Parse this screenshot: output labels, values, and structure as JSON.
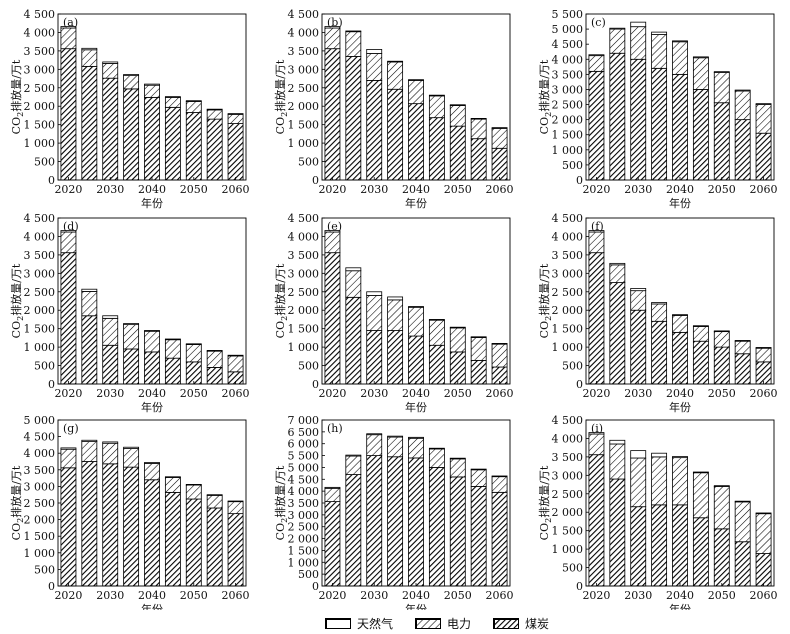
{
  "legend": [
    {
      "key": "gas",
      "label": "天然气"
    },
    {
      "key": "power",
      "label": "电力"
    },
    {
      "key": "coal",
      "label": "煤炭"
    }
  ],
  "ylabel_main": "CO",
  "ylabel_sub": "2",
  "ylabel_rest": "排放量/万t",
  "xlabel": "年份",
  "chart_data": [
    {
      "type": "bar",
      "stacked": true,
      "panel": "(a)",
      "categories": [
        "2020",
        "2025",
        "2030",
        "2035",
        "2040",
        "2045",
        "2050",
        "2055",
        "2060"
      ],
      "x_ticks": [
        "2020",
        "2030",
        "2040",
        "2050",
        "2060"
      ],
      "ylim": [
        0,
        4500
      ],
      "yticks": [
        0,
        500,
        1000,
        1500,
        2000,
        2500,
        3000,
        3500,
        4000,
        4500
      ],
      "series": [
        {
          "name": "煤炭",
          "values": [
            3560,
            3080,
            2760,
            2470,
            2240,
            1970,
            1830,
            1650,
            1530
          ]
        },
        {
          "name": "电力",
          "values": [
            560,
            450,
            400,
            360,
            330,
            270,
            300,
            250,
            250
          ]
        },
        {
          "name": "天然气",
          "values": [
            40,
            40,
            40,
            30,
            30,
            20,
            20,
            20,
            20
          ]
        }
      ]
    },
    {
      "type": "bar",
      "stacked": true,
      "panel": "(b)",
      "categories": [
        "2020",
        "2025",
        "2030",
        "2035",
        "2040",
        "2045",
        "2050",
        "2055",
        "2060"
      ],
      "x_ticks": [
        "2020",
        "2030",
        "2040",
        "2050",
        "2060"
      ],
      "ylim": [
        0,
        4500
      ],
      "yticks": [
        0,
        500,
        1000,
        1500,
        2000,
        2500,
        3000,
        3500,
        4000,
        4500
      ],
      "series": [
        {
          "name": "煤炭",
          "values": [
            3560,
            3350,
            2700,
            2460,
            2070,
            1690,
            1460,
            1120,
            860
          ]
        },
        {
          "name": "电力",
          "values": [
            560,
            670,
            730,
            740,
            630,
            590,
            560,
            530,
            540
          ]
        },
        {
          "name": "天然气",
          "values": [
            40,
            20,
            110,
            20,
            20,
            20,
            20,
            20,
            20
          ]
        }
      ]
    },
    {
      "type": "bar",
      "stacked": true,
      "panel": "(c)",
      "categories": [
        "2020",
        "2025",
        "2030",
        "2035",
        "2040",
        "2045",
        "2050",
        "2055",
        "2060"
      ],
      "x_ticks": [
        "2020",
        "2030",
        "2040",
        "2050",
        "2060"
      ],
      "ylim": [
        0,
        5500
      ],
      "yticks": [
        0,
        500,
        1000,
        1500,
        2000,
        2500,
        3000,
        3500,
        4000,
        4500,
        5000,
        5500
      ],
      "series": [
        {
          "name": "煤炭",
          "values": [
            3600,
            4200,
            4000,
            3700,
            3500,
            3000,
            2560,
            2000,
            1550
          ]
        },
        {
          "name": "电力",
          "values": [
            520,
            800,
            1080,
            1120,
            1080,
            1050,
            1000,
            950,
            950
          ]
        },
        {
          "name": "天然气",
          "values": [
            30,
            30,
            150,
            80,
            30,
            30,
            30,
            30,
            30
          ]
        }
      ]
    },
    {
      "type": "bar",
      "stacked": true,
      "panel": "(d)",
      "categories": [
        "2020",
        "2025",
        "2030",
        "2035",
        "2040",
        "2045",
        "2050",
        "2055",
        "2060"
      ],
      "x_ticks": [
        "2020",
        "2030",
        "2040",
        "2050",
        "2060"
      ],
      "ylim": [
        0,
        4500
      ],
      "yticks": [
        0,
        500,
        1000,
        1500,
        2000,
        2500,
        3000,
        3500,
        4000,
        4500
      ],
      "series": [
        {
          "name": "煤炭",
          "values": [
            3560,
            1850,
            1050,
            950,
            870,
            700,
            600,
            450,
            330
          ]
        },
        {
          "name": "电力",
          "values": [
            560,
            660,
            730,
            660,
            560,
            500,
            470,
            440,
            430
          ]
        },
        {
          "name": "天然气",
          "values": [
            40,
            60,
            70,
            30,
            20,
            20,
            20,
            20,
            20
          ]
        }
      ]
    },
    {
      "type": "bar",
      "stacked": true,
      "panel": "(e)",
      "categories": [
        "2020",
        "2025",
        "2030",
        "2035",
        "2040",
        "2045",
        "2050",
        "2055",
        "2060"
      ],
      "x_ticks": [
        "2020",
        "2030",
        "2040",
        "2050",
        "2060"
      ],
      "ylim": [
        0,
        4500
      ],
      "yticks": [
        0,
        500,
        1000,
        1500,
        2000,
        2500,
        3000,
        3500,
        4000,
        4500
      ],
      "series": [
        {
          "name": "煤炭",
          "values": [
            3560,
            2350,
            1450,
            1450,
            1300,
            1050,
            870,
            640,
            460
          ]
        },
        {
          "name": "电力",
          "values": [
            560,
            720,
            950,
            830,
            780,
            680,
            650,
            620,
            620
          ]
        },
        {
          "name": "天然气",
          "values": [
            40,
            80,
            100,
            80,
            20,
            20,
            20,
            20,
            20
          ]
        }
      ]
    },
    {
      "type": "bar",
      "stacked": true,
      "panel": "(f)",
      "categories": [
        "2020",
        "2025",
        "2030",
        "2035",
        "2040",
        "2045",
        "2050",
        "2055",
        "2060"
      ],
      "x_ticks": [
        "2020",
        "2030",
        "2040",
        "2050",
        "2060"
      ],
      "ylim": [
        0,
        4500
      ],
      "yticks": [
        0,
        500,
        1000,
        1500,
        2000,
        2500,
        3000,
        3500,
        4000,
        4500
      ],
      "series": [
        {
          "name": "煤炭",
          "values": [
            3560,
            2750,
            2000,
            1700,
            1400,
            1160,
            1000,
            820,
            600
          ]
        },
        {
          "name": "电力",
          "values": [
            560,
            480,
            530,
            470,
            460,
            400,
            420,
            340,
            370
          ]
        },
        {
          "name": "天然气",
          "values": [
            40,
            40,
            60,
            40,
            20,
            20,
            20,
            20,
            20
          ]
        }
      ]
    },
    {
      "type": "bar",
      "stacked": true,
      "panel": "(g)",
      "categories": [
        "2020",
        "2025",
        "2030",
        "2035",
        "2040",
        "2045",
        "2050",
        "2055",
        "2060"
      ],
      "x_ticks": [
        "2020",
        "2030",
        "2040",
        "2050",
        "2060"
      ],
      "ylim": [
        0,
        5000
      ],
      "yticks": [
        0,
        500,
        1000,
        1500,
        2000,
        2500,
        3000,
        3500,
        4000,
        4500,
        5000
      ],
      "series": [
        {
          "name": "煤炭",
          "values": [
            3560,
            3750,
            3680,
            3580,
            3200,
            2820,
            2620,
            2350,
            2180
          ]
        },
        {
          "name": "电力",
          "values": [
            560,
            600,
            620,
            560,
            490,
            450,
            420,
            380,
            360
          ]
        },
        {
          "name": "天然气",
          "values": [
            40,
            40,
            40,
            40,
            30,
            20,
            20,
            20,
            20
          ]
        }
      ]
    },
    {
      "type": "bar",
      "stacked": true,
      "panel": "(h)",
      "categories": [
        "2020",
        "2025",
        "2030",
        "2035",
        "2040",
        "2045",
        "2050",
        "2055",
        "2060"
      ],
      "x_ticks": [
        "2020",
        "2030",
        "2040",
        "2050",
        "2060"
      ],
      "ylim": [
        0,
        7000
      ],
      "yticks": [
        0,
        500,
        1000,
        1500,
        2000,
        2500,
        3000,
        3500,
        4000,
        4500,
        5000,
        5500,
        6000,
        6500,
        7000
      ],
      "series": [
        {
          "name": "煤炭",
          "values": [
            3560,
            4700,
            5500,
            5450,
            5400,
            5000,
            4600,
            4200,
            3950
          ]
        },
        {
          "name": "电力",
          "values": [
            560,
            780,
            880,
            830,
            830,
            780,
            760,
            700,
            660
          ]
        },
        {
          "name": "天然气",
          "values": [
            40,
            40,
            40,
            40,
            40,
            30,
            30,
            30,
            30
          ]
        }
      ]
    },
    {
      "type": "bar",
      "stacked": true,
      "panel": "(i)",
      "categories": [
        "2020",
        "2025",
        "2030",
        "2035",
        "2040",
        "2045",
        "2050",
        "2055",
        "2060"
      ],
      "x_ticks": [
        "2020",
        "2030",
        "2040",
        "2050",
        "2060"
      ],
      "ylim": [
        0,
        4500
      ],
      "yticks": [
        0,
        500,
        1000,
        1500,
        2000,
        2500,
        3000,
        3500,
        4000,
        4500
      ],
      "series": [
        {
          "name": "煤炭",
          "values": [
            3560,
            2900,
            2150,
            2200,
            2200,
            1850,
            1550,
            1200,
            880
          ]
        },
        {
          "name": "电力",
          "values": [
            560,
            950,
            1320,
            1300,
            1280,
            1220,
            1150,
            1080,
            1080
          ]
        },
        {
          "name": "天然气",
          "values": [
            40,
            100,
            200,
            100,
            30,
            20,
            20,
            20,
            20
          ]
        }
      ]
    }
  ]
}
